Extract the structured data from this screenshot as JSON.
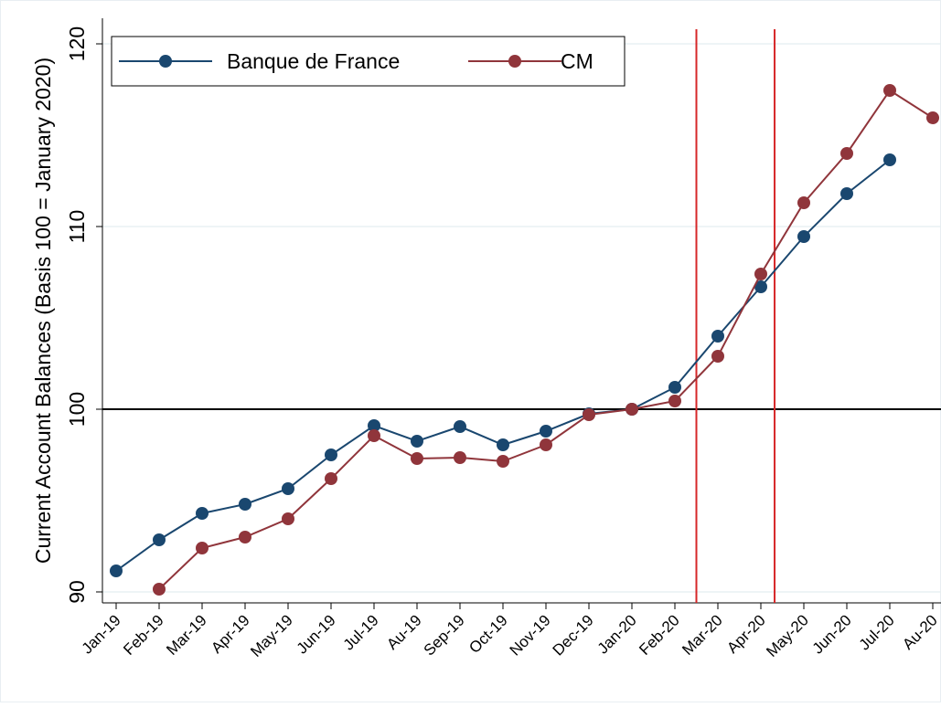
{
  "chart_data": {
    "type": "line",
    "y_label": "Current Account Balances (Basis 100 = January 2020)",
    "categories": [
      "Jan-19",
      "Feb-19",
      "Mar-19",
      "Apr-19",
      "May-19",
      "Jun-19",
      "Jul-19",
      "Au-19",
      "Sep-19",
      "Oct-19",
      "Nov-19",
      "Dec-19",
      "Jan-20",
      "Feb-20",
      "Mar-20",
      "Apr-20",
      "May-20",
      "Jun-20",
      "Jul-20",
      "Au-20"
    ],
    "series": [
      {
        "name": "Banque de France",
        "color": "#1a476f",
        "values": [
          91.15,
          92.85,
          94.3,
          94.8,
          95.65,
          97.5,
          99.1,
          98.25,
          99.05,
          98.05,
          98.8,
          99.75,
          100,
          101.2,
          104,
          106.7,
          109.45,
          111.8,
          113.65,
          null
        ]
      },
      {
        "name": "CM",
        "color": "#90353b",
        "values": [
          null,
          90.15,
          92.4,
          93,
          94,
          96.2,
          98.55,
          97.3,
          97.35,
          97.15,
          98.05,
          99.7,
          100,
          100.45,
          102.9,
          107.4,
          111.3,
          114,
          117.45,
          115.95
        ]
      }
    ],
    "ylim": [
      89.4,
      121.4
    ],
    "yticks": [
      90,
      100,
      110,
      120
    ],
    "grid": true,
    "hline": {
      "value": 100,
      "color": "#000000"
    },
    "vlines": [
      {
        "x": 13.5,
        "color": "#d62728"
      },
      {
        "x": 15.32,
        "color": "#d62728"
      }
    ],
    "legend": "top-left"
  }
}
